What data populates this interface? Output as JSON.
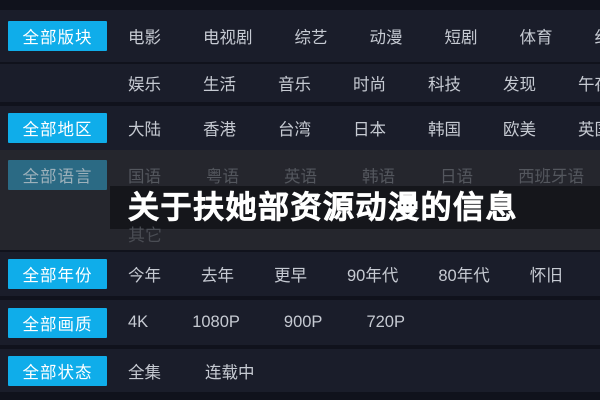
{
  "colors": {
    "accent": "#0fadea",
    "background": "#10121c",
    "band": "#1a1d2a",
    "overlay": "#25262d"
  },
  "title_bar": {
    "text": "关于扶她部资源动漫的信息"
  },
  "filter_rows": [
    {
      "key": "section",
      "button_label": "全部版块",
      "button_state": "active",
      "items": [
        "电影",
        "电视剧",
        "综艺",
        "动漫",
        "短剧",
        "体育",
        "纪录片"
      ]
    },
    {
      "key": "section-extra",
      "button_label": "",
      "button_state": "none",
      "items": [
        "娱乐",
        "生活",
        "音乐",
        "时尚",
        "科技",
        "发现",
        "午夜"
      ]
    },
    {
      "key": "region",
      "button_label": "全部地区",
      "button_state": "active",
      "items": [
        "大陆",
        "香港",
        "台湾",
        "日本",
        "韩国",
        "欧美",
        "英国"
      ]
    },
    {
      "key": "language",
      "button_label": "全部语言",
      "button_state": "dimmed",
      "items": [
        "国语",
        "粤语",
        "英语",
        "韩语",
        "日语",
        "西班牙语"
      ]
    },
    {
      "key": "language-extra",
      "button_label": "",
      "button_state": "none",
      "items": [
        "其它"
      ]
    },
    {
      "key": "year",
      "button_label": "全部年份",
      "button_state": "active",
      "items": [
        "今年",
        "去年",
        "更早",
        "90年代",
        "80年代",
        "怀旧"
      ]
    },
    {
      "key": "quality",
      "button_label": "全部画质",
      "button_state": "active",
      "items": [
        "4K",
        "1080P",
        "900P",
        "720P"
      ]
    },
    {
      "key": "status",
      "button_label": "全部状态",
      "button_state": "active",
      "items": [
        "全集",
        "连载中"
      ]
    }
  ]
}
